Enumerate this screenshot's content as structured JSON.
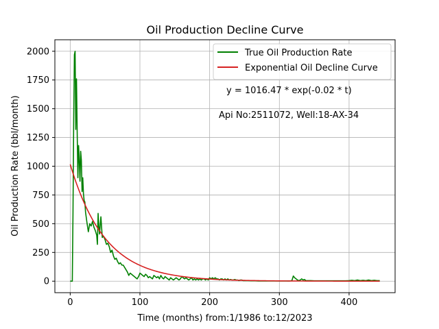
{
  "chart_data": {
    "type": "line",
    "title": "Oil Production Decline Curve",
    "xlabel": "Time (months) from:1/1986 to:12/2023",
    "ylabel": "Oil Production Rate (bbl/month)",
    "xlim": [
      -22,
      466
    ],
    "ylim": [
      -100,
      2100
    ],
    "x_ticks": [
      0,
      100,
      200,
      300,
      400
    ],
    "y_ticks": [
      0,
      250,
      500,
      750,
      1000,
      1250,
      1500,
      1750,
      2000
    ],
    "grid": true,
    "legend_position": "top-right",
    "annotations": [
      "y = 1016.47 * exp(-0.02 * t)",
      "Api No:2511072, Well:18-AX-34"
    ],
    "series": [
      {
        "name": "True Oil Production Rate",
        "color": "#008000",
        "points": [
          [
            0,
            0
          ],
          [
            2,
            0
          ],
          [
            3,
            0
          ],
          [
            4,
            600
          ],
          [
            5,
            1400
          ],
          [
            6,
            1970
          ],
          [
            7,
            2000
          ],
          [
            8,
            1320
          ],
          [
            9,
            1760
          ],
          [
            10,
            1300
          ],
          [
            11,
            900
          ],
          [
            12,
            1180
          ],
          [
            13,
            1050
          ],
          [
            14,
            870
          ],
          [
            15,
            1130
          ],
          [
            16,
            1050
          ],
          [
            17,
            780
          ],
          [
            18,
            900
          ],
          [
            19,
            760
          ],
          [
            20,
            700
          ],
          [
            21,
            690
          ],
          [
            22,
            600
          ],
          [
            24,
            510
          ],
          [
            26,
            430
          ],
          [
            28,
            500
          ],
          [
            30,
            480
          ],
          [
            32,
            520
          ],
          [
            34,
            470
          ],
          [
            36,
            440
          ],
          [
            38,
            400
          ],
          [
            39,
            320
          ],
          [
            40,
            590
          ],
          [
            41,
            480
          ],
          [
            42,
            410
          ],
          [
            44,
            560
          ],
          [
            45,
            470
          ],
          [
            46,
            380
          ],
          [
            48,
            390
          ],
          [
            50,
            360
          ],
          [
            52,
            320
          ],
          [
            54,
            330
          ],
          [
            56,
            300
          ],
          [
            58,
            250
          ],
          [
            60,
            270
          ],
          [
            62,
            220
          ],
          [
            64,
            190
          ],
          [
            66,
            200
          ],
          [
            68,
            170
          ],
          [
            70,
            150
          ],
          [
            72,
            160
          ],
          [
            74,
            140
          ],
          [
            76,
            140
          ],
          [
            78,
            120
          ],
          [
            80,
            100
          ],
          [
            82,
            80
          ],
          [
            84,
            50
          ],
          [
            86,
            70
          ],
          [
            88,
            60
          ],
          [
            90,
            50
          ],
          [
            92,
            40
          ],
          [
            94,
            30
          ],
          [
            96,
            20
          ],
          [
            98,
            40
          ],
          [
            100,
            70
          ],
          [
            102,
            60
          ],
          [
            104,
            50
          ],
          [
            106,
            40
          ],
          [
            108,
            60
          ],
          [
            110,
            50
          ],
          [
            112,
            30
          ],
          [
            114,
            40
          ],
          [
            116,
            30
          ],
          [
            118,
            20
          ],
          [
            120,
            50
          ],
          [
            122,
            40
          ],
          [
            124,
            30
          ],
          [
            126,
            40
          ],
          [
            128,
            20
          ],
          [
            130,
            50
          ],
          [
            132,
            30
          ],
          [
            134,
            20
          ],
          [
            136,
            40
          ],
          [
            138,
            30
          ],
          [
            140,
            20
          ],
          [
            142,
            10
          ],
          [
            144,
            30
          ],
          [
            146,
            20
          ],
          [
            148,
            10
          ],
          [
            150,
            20
          ],
          [
            152,
            30
          ],
          [
            154,
            20
          ],
          [
            156,
            10
          ],
          [
            158,
            20
          ],
          [
            160,
            40
          ],
          [
            162,
            30
          ],
          [
            164,
            20
          ],
          [
            166,
            30
          ],
          [
            168,
            20
          ],
          [
            170,
            10
          ],
          [
            172,
            20
          ],
          [
            174,
            30
          ],
          [
            176,
            10
          ],
          [
            178,
            20
          ],
          [
            180,
            10
          ],
          [
            182,
            20
          ],
          [
            184,
            10
          ],
          [
            186,
            20
          ],
          [
            188,
            10
          ],
          [
            190,
            20
          ],
          [
            192,
            20
          ],
          [
            194,
            10
          ],
          [
            196,
            20
          ],
          [
            198,
            10
          ],
          [
            200,
            30
          ],
          [
            202,
            20
          ],
          [
            204,
            30
          ],
          [
            206,
            20
          ],
          [
            208,
            30
          ],
          [
            210,
            20
          ],
          [
            212,
            20
          ],
          [
            214,
            10
          ],
          [
            216,
            20
          ],
          [
            218,
            20
          ],
          [
            220,
            10
          ],
          [
            222,
            20
          ],
          [
            224,
            10
          ],
          [
            226,
            20
          ],
          [
            228,
            10
          ],
          [
            230,
            15
          ],
          [
            232,
            10
          ],
          [
            234,
            10
          ],
          [
            236,
            15
          ],
          [
            238,
            10
          ],
          [
            240,
            10
          ],
          [
            242,
            5
          ],
          [
            244,
            10
          ],
          [
            246,
            10
          ],
          [
            248,
            5
          ],
          [
            250,
            5
          ],
          [
            255,
            5
          ],
          [
            260,
            3
          ],
          [
            265,
            3
          ],
          [
            270,
            2
          ],
          [
            275,
            2
          ],
          [
            280,
            2
          ],
          [
            285,
            2
          ],
          [
            290,
            2
          ],
          [
            295,
            2
          ],
          [
            300,
            2
          ],
          [
            305,
            2
          ],
          [
            310,
            2
          ],
          [
            315,
            2
          ],
          [
            318,
            5
          ],
          [
            320,
            45
          ],
          [
            322,
            30
          ],
          [
            324,
            20
          ],
          [
            326,
            10
          ],
          [
            328,
            5
          ],
          [
            330,
            10
          ],
          [
            332,
            20
          ],
          [
            334,
            10
          ],
          [
            336,
            15
          ],
          [
            338,
            5
          ],
          [
            340,
            5
          ],
          [
            345,
            5
          ],
          [
            350,
            3
          ],
          [
            355,
            3
          ],
          [
            360,
            3
          ],
          [
            365,
            3
          ],
          [
            370,
            3
          ],
          [
            375,
            3
          ],
          [
            380,
            3
          ],
          [
            385,
            3
          ],
          [
            390,
            3
          ],
          [
            395,
            3
          ],
          [
            400,
            5
          ],
          [
            404,
            8
          ],
          [
            408,
            5
          ],
          [
            412,
            10
          ],
          [
            416,
            5
          ],
          [
            420,
            8
          ],
          [
            424,
            5
          ],
          [
            428,
            10
          ],
          [
            432,
            5
          ],
          [
            436,
            8
          ],
          [
            440,
            5
          ],
          [
            444,
            5
          ]
        ]
      },
      {
        "name": "Exponential Oil Decline Curve",
        "color": "#d62020",
        "q0": 1016.47,
        "decline_rate": 0.02,
        "t_range": [
          0,
          444
        ]
      }
    ]
  }
}
